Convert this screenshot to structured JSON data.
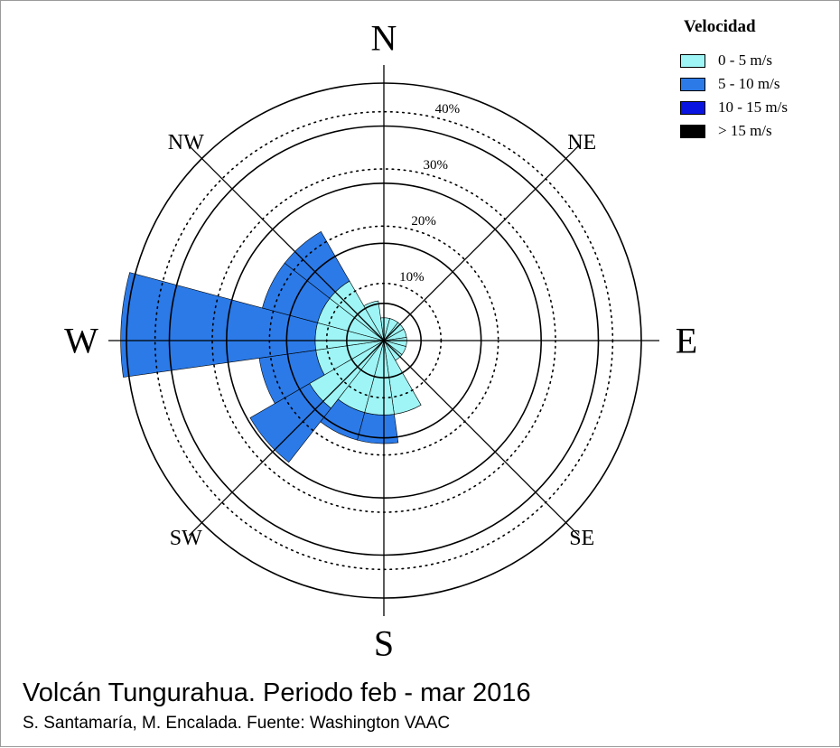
{
  "chart_data": {
    "type": "wind-rose",
    "directions": [
      "N",
      "NE",
      "E",
      "SE",
      "S",
      "SW",
      "W",
      "NW"
    ],
    "cardinal_labels": [
      "N",
      "NE",
      "E",
      "SE",
      "S",
      "SW",
      "W",
      "NW"
    ],
    "rings": [
      "10%",
      "20%",
      "30%",
      "40%"
    ],
    "ring_values": [
      10,
      20,
      30,
      40
    ],
    "rmax": 45,
    "legend": {
      "title": "Velocidad",
      "placement": "top-right",
      "items": [
        {
          "label": "0 - 5 m/s",
          "color": "#9ff5f5"
        },
        {
          "label": "5 - 10 m/s",
          "color": "#2b7ae8"
        },
        {
          "label": "10 - 15 m/s",
          "color": "#0a14e0"
        },
        {
          "label": "> 15 m/s",
          "color": "#000000"
        }
      ]
    },
    "sectors": [
      {
        "start": 0,
        "end": 15,
        "values": [
          4,
          0,
          0,
          0
        ]
      },
      {
        "start": 15,
        "end": 38,
        "values": [
          4,
          0,
          0,
          0
        ]
      },
      {
        "start": 38,
        "end": 60,
        "values": [
          4,
          0,
          0,
          0
        ]
      },
      {
        "start": 60,
        "end": 82,
        "values": [
          4,
          0,
          0,
          0
        ]
      },
      {
        "start": 82,
        "end": 105,
        "values": [
          4,
          0,
          0,
          0
        ]
      },
      {
        "start": 105,
        "end": 128,
        "values": [
          4,
          0,
          0,
          0
        ]
      },
      {
        "start": 128,
        "end": 150,
        "values": [
          4,
          0,
          0,
          0
        ]
      },
      {
        "start": 150,
        "end": 172,
        "values": [
          13,
          0,
          0,
          0
        ]
      },
      {
        "start": 172,
        "end": 195,
        "values": [
          13,
          5,
          0,
          0
        ]
      },
      {
        "start": 195,
        "end": 218,
        "values": [
          13,
          5,
          0,
          0
        ]
      },
      {
        "start": 218,
        "end": 240,
        "values": [
          15,
          12,
          0,
          0
        ]
      },
      {
        "start": 240,
        "end": 262,
        "values": [
          12,
          10,
          0,
          0
        ]
      },
      {
        "start": 262,
        "end": 285,
        "values": [
          12,
          34,
          0,
          0
        ]
      },
      {
        "start": 285,
        "end": 308,
        "values": [
          12,
          10,
          0,
          0
        ]
      },
      {
        "start": 308,
        "end": 330,
        "values": [
          12,
          10,
          0,
          0
        ]
      },
      {
        "start": 330,
        "end": 352,
        "values": [
          7,
          0,
          0,
          0
        ]
      },
      {
        "start": 352,
        "end": 360,
        "values": [
          4,
          0,
          0,
          0
        ]
      }
    ]
  },
  "caption": {
    "title": "Volcán Tungurahua. Periodo feb - mar 2016",
    "subtitle": "S. Santamaría, M. Encalada. Fuente: Washington VAAC"
  }
}
